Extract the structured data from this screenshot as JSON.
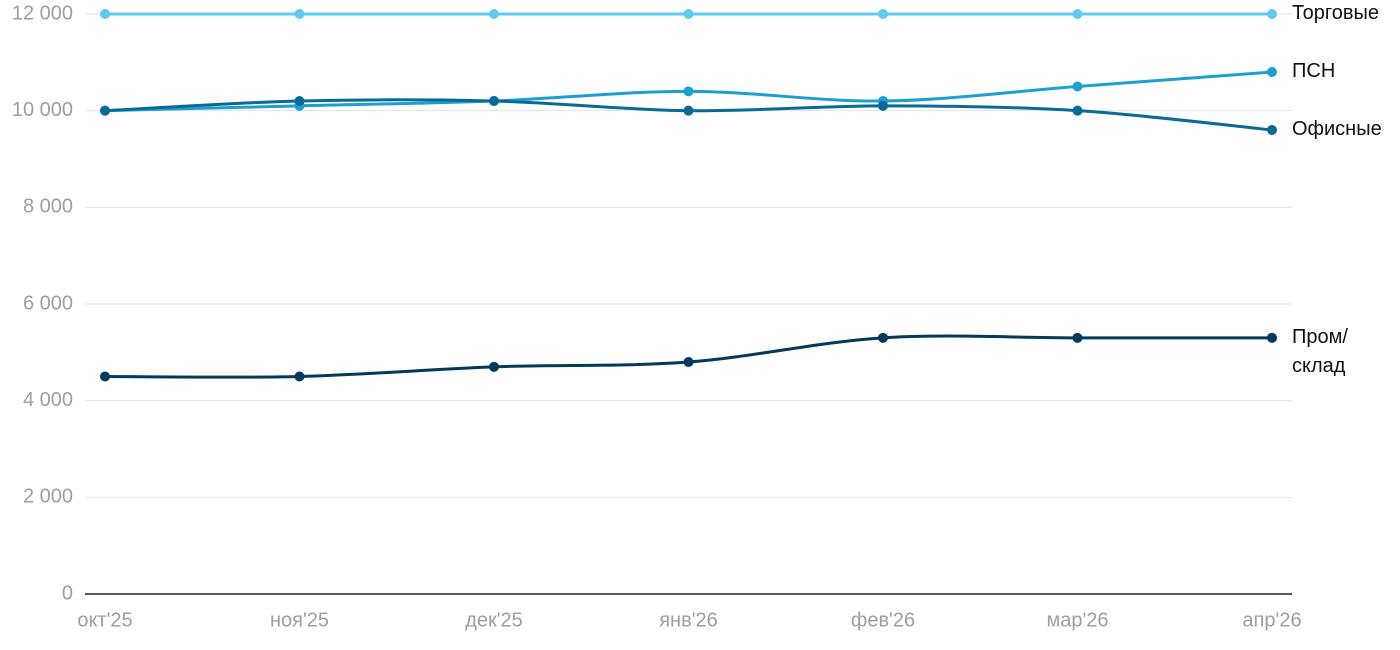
{
  "chart_data": {
    "type": "line",
    "categories": [
      "окт'25",
      "ноя'25",
      "дек'25",
      "янв'26",
      "фев'26",
      "мар'26",
      "апр'26"
    ],
    "series": [
      {
        "name": "Торговые",
        "color": "#5ecbf0",
        "values": [
          12000,
          12000,
          12000,
          12000,
          12000,
          12000,
          12000
        ]
      },
      {
        "name": "ПСН",
        "color": "#1ea0cf",
        "values": [
          10000,
          10100,
          10200,
          10400,
          10200,
          10500,
          10800
        ]
      },
      {
        "name": "Офисные",
        "color": "#0a6a96",
        "values": [
          10000,
          10200,
          10200,
          10000,
          10100,
          10000,
          9600
        ]
      },
      {
        "name": "Пром/склад",
        "color": "#033a5c",
        "values": [
          4500,
          4500,
          4700,
          4800,
          5300,
          5300,
          5300
        ]
      }
    ],
    "ylim": [
      0,
      12000
    ],
    "yticks": [
      0,
      {
        "value": 2000,
        "label": "2 000"
      },
      {
        "value": 4000,
        "label": "4 000"
      },
      {
        "value": 6000,
        "label": "6 000"
      },
      {
        "value": 8000,
        "label": "8 000"
      },
      {
        "value": 10000,
        "label": "10 000"
      },
      {
        "value": 12000,
        "label": "12 000"
      }
    ],
    "grid": true
  }
}
